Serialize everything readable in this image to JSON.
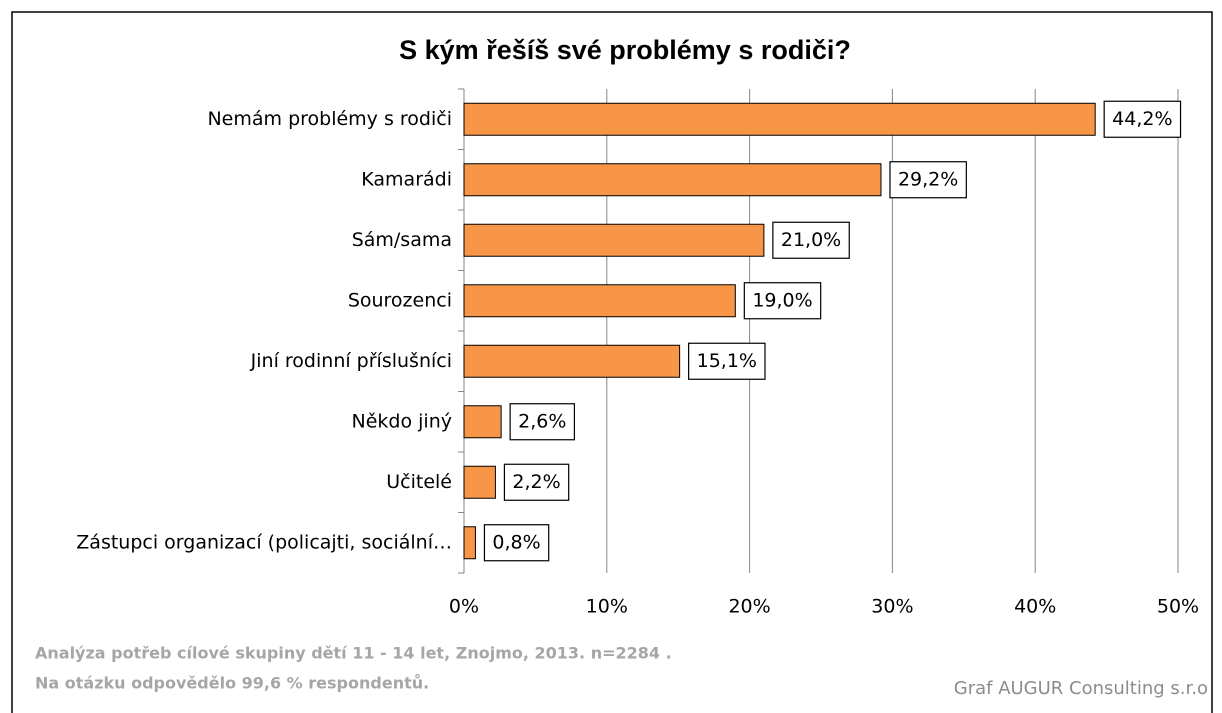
{
  "chart_data": {
    "type": "hbar",
    "title": "S kým řešíš své problémy s rodiči?",
    "categories": [
      "Nemám problémy s rodiči",
      "Kamarádi",
      "Sám/sama",
      "Sourozenci",
      "Jiní rodinní příslušníci",
      "Někdo jiný",
      "Učitelé",
      "Zástupci organizací (policajti, sociální…"
    ],
    "values": [
      44.2,
      29.2,
      21.0,
      19.0,
      15.1,
      2.6,
      2.2,
      0.8
    ],
    "value_labels": [
      "44,2%",
      "29,2%",
      "21,0%",
      "19,0%",
      "15,1%",
      "2,6%",
      "2,2%",
      "0,8%"
    ],
    "color": "#f79646",
    "xlim": [
      0,
      50
    ],
    "xticks": [
      {
        "value": 0,
        "label": "0%"
      },
      {
        "value": 10,
        "label": "10%"
      },
      {
        "value": 20,
        "label": "20%"
      },
      {
        "value": 30,
        "label": "30%"
      },
      {
        "value": 40,
        "label": "40%"
      },
      {
        "value": 50,
        "label": "50%"
      }
    ],
    "grid": true,
    "footnotes": [
      "Analýza potřeb cílové skupiny dětí 11 - 14 let, Znojmo, 2013. n=2284 .",
      "Na otázku odpovědělo 99,6 % respondentů."
    ],
    "credit": "Graf AUGUR Consulting s.r.o"
  }
}
